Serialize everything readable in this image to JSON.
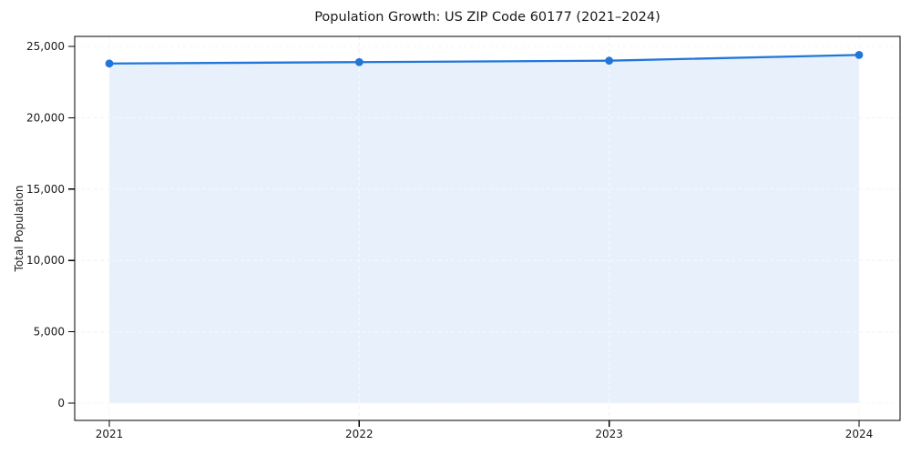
{
  "chart_data": {
    "type": "line",
    "title": "Population Growth: US ZIP Code 60177 (2021–2024)",
    "ylabel": "Total Population",
    "xlabel": "",
    "categories": [
      "2021",
      "2022",
      "2023",
      "2024"
    ],
    "values": [
      23800,
      23900,
      24000,
      24400
    ],
    "series_name": "Total Population",
    "ylim": [
      0,
      25000
    ],
    "yticks": [
      {
        "value": 0,
        "label": "0"
      },
      {
        "value": 5000,
        "label": "5,000"
      },
      {
        "value": 10000,
        "label": "10,000"
      },
      {
        "value": 15000,
        "label": "15,000"
      },
      {
        "value": 20000,
        "label": "20,000"
      },
      {
        "value": 25000,
        "label": "25,000"
      }
    ],
    "grid": true,
    "grid_style": "dashed",
    "legend": "none",
    "colors": {
      "line": "#2176d9",
      "marker": "#2176d9",
      "fill": "#e8f0fc",
      "grid": "#e2e2e2",
      "grid_over_fill": "rgba(255,255,255,0.65)",
      "frame": "#000000",
      "text": "#1a1a1a",
      "background": "#ffffff"
    }
  }
}
